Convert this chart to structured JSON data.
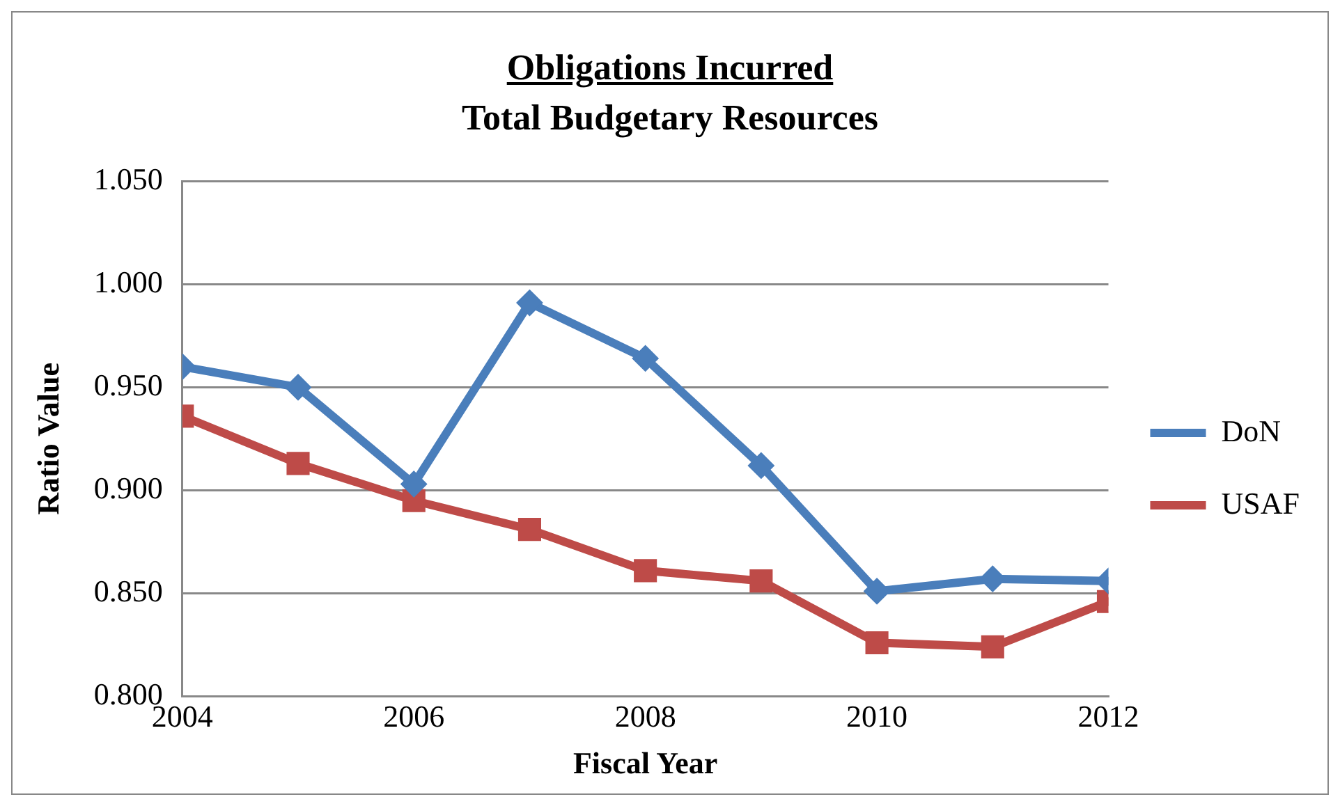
{
  "chart_data": {
    "type": "line",
    "title": "Obligations Incurred",
    "subtitle": "Total Budgetary Resources",
    "xlabel": "Fiscal Year",
    "ylabel": "Ratio Value",
    "x": [
      2004,
      2005,
      2006,
      2007,
      2008,
      2009,
      2010,
      2011,
      2012
    ],
    "series": [
      {
        "name": "DoN",
        "color": "#4a7ebb",
        "marker": "diamond",
        "values": [
          0.96,
          0.95,
          0.903,
          0.991,
          0.964,
          0.912,
          0.851,
          0.857,
          0.856
        ]
      },
      {
        "name": "USAF",
        "color": "#be4b48",
        "marker": "square",
        "values": [
          0.936,
          0.913,
          0.895,
          0.881,
          0.861,
          0.856,
          0.826,
          0.824,
          0.846
        ]
      }
    ],
    "xlim": [
      2004,
      2012
    ],
    "xticks": [
      2004,
      2006,
      2008,
      2010,
      2012
    ],
    "ylim": [
      0.8,
      1.05
    ],
    "yticks": [
      {
        "value": 0.8,
        "label": "0.800"
      },
      {
        "value": 0.85,
        "label": "0.850"
      },
      {
        "value": 0.9,
        "label": "0.900"
      },
      {
        "value": 0.95,
        "label": "0.950"
      },
      {
        "value": 1.0,
        "label": "1.000"
      },
      {
        "value": 1.05,
        "label": "1.050"
      }
    ],
    "grid": "y",
    "legend": "right",
    "line_style": "solid"
  }
}
